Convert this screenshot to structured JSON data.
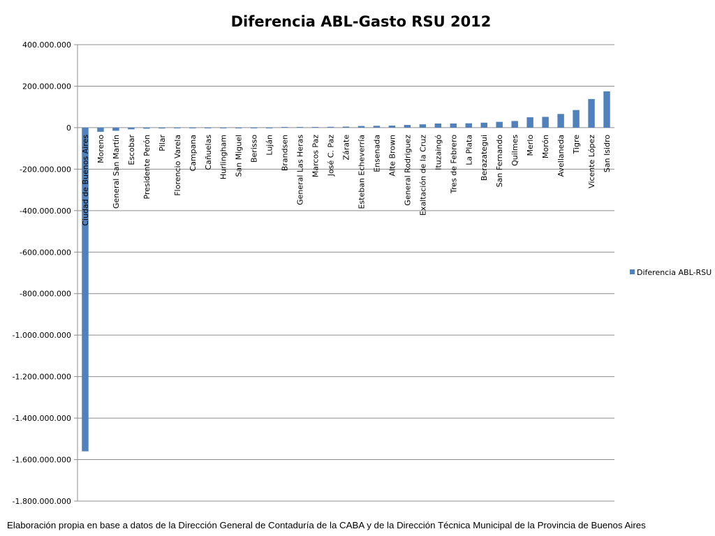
{
  "footnote": "Elaboración propia en base a datos de la Dirección General de Contaduría de la CABA y de la Dirección Técnica Municipal de la Provincia de Buenos Aires",
  "chart_data": {
    "type": "bar",
    "title": "Diferencia ABL-Gasto RSU 2012",
    "xlabel": "",
    "ylabel": "",
    "ylim": [
      -1800000000,
      400000000
    ],
    "yticks": [
      400000000,
      200000000,
      0,
      -200000000,
      -400000000,
      -600000000,
      -800000000,
      -1000000000,
      -1200000000,
      -1400000000,
      -1600000000,
      -1800000000
    ],
    "ytick_labels": [
      "400.000.000",
      "200.000.000",
      "0",
      "-200.000.000",
      "-400.000.000",
      "-600.000.000",
      "-800.000.000",
      "-1.000.000.000",
      "-1.200.000.000",
      "-1.400.000.000",
      "-1.600.000.000",
      "-1.800.000.000"
    ],
    "grid": true,
    "legend_position": "right",
    "bar_color": "#4F81BD",
    "categories": [
      "Ciudad de Buenos Aires",
      "Moreno",
      "General San Martín",
      "Escobar",
      "Presidente Perón",
      "Pilar",
      "Florencio Varela",
      "Campana",
      "Cañuelas",
      "Hurlingham",
      "San Miguel",
      "Berisso",
      "Luján",
      "Brandsen",
      "General Las Heras",
      "Marcos Paz",
      "José C. Paz",
      "Zárate",
      "Esteban Echeverría",
      "Ensenada",
      "Alte Brown",
      "General Rodriguez",
      "Exaltación de la Cruz",
      "Ituzaingó",
      "Tres de Febrero",
      "La Plata",
      "Berazategui",
      "San Fernando",
      "Quilmes",
      "Merlo",
      "Morón",
      "Avellaneda",
      "Tigre",
      "Vicente López",
      "San Isidro"
    ],
    "series": [
      {
        "name": "Diferencia ABL-RSU",
        "values": [
          -1560000000,
          -20000000,
          -15000000,
          -8000000,
          -5000000,
          -4000000,
          -1500000,
          -1000000,
          -800000,
          -500000,
          -300000,
          -200000,
          -100000,
          100000,
          500000,
          1000000,
          4000000,
          5000000,
          8000000,
          9000000,
          10000000,
          13000000,
          16000000,
          20000000,
          20000000,
          21000000,
          24000000,
          28000000,
          32000000,
          50000000,
          52000000,
          66000000,
          85000000,
          138000000,
          175000000
        ]
      }
    ]
  }
}
